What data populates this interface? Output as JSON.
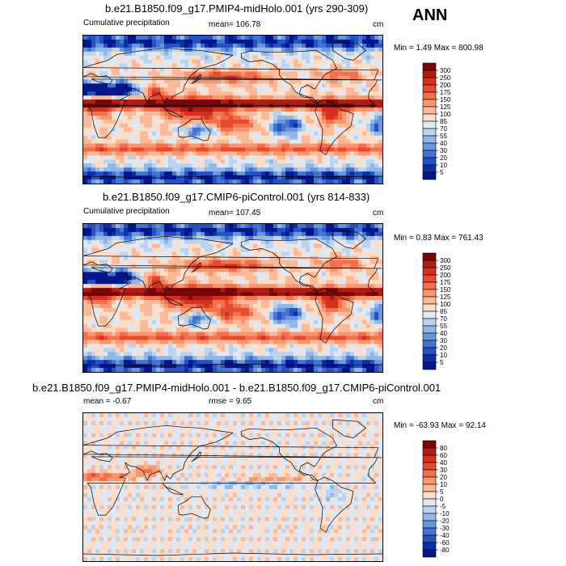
{
  "season": "ANN",
  "panels": [
    {
      "title": "b.e21.B1850.f09_g17.PMIP4-midHolo.001 (yrs 290-309)",
      "left_label": "Cumulative precipitation",
      "center_label": "mean= 106.78",
      "units": "cm",
      "minmax": "Min =   1.49 Max = 800.98",
      "type": "absolute",
      "colorbar_levels": [
        "300",
        "250",
        "200",
        "175",
        "150",
        "125",
        "100",
        "85",
        "70",
        "55",
        "40",
        "30",
        "20",
        "10",
        "5"
      ]
    },
    {
      "title": "b.e21.B1850.f09_g17.CMIP6-piControl.001 (yrs 814-833)",
      "left_label": "Cumulative precipitation",
      "center_label": "mean= 107.45",
      "units": "cm",
      "minmax": "Min =   0.83 Max = 761.43",
      "type": "absolute",
      "colorbar_levels": [
        "300",
        "250",
        "200",
        "175",
        "150",
        "125",
        "100",
        "85",
        "70",
        "55",
        "40",
        "30",
        "20",
        "10",
        "5"
      ]
    },
    {
      "title": "b.e21.B1850.f09_g17.PMIP4-midHolo.001 - b.e21.B1850.f09_g17.CMIP6-piControl.001",
      "left_label": "mean =  -0.67",
      "center_label": "rmse =   9.65",
      "units": "cm",
      "minmax": "Min = -63.93 Max =  92.14",
      "type": "difference",
      "colorbar_levels": [
        "80",
        "60",
        "40",
        "30",
        "20",
        "10",
        "5",
        "0",
        "-5",
        "-10",
        "-20",
        "-30",
        "-40",
        "-60",
        "-80"
      ]
    }
  ],
  "colors": {
    "absolute": [
      "#7a0403",
      "#b11b12",
      "#d4301f",
      "#e64b2e",
      "#f2704d",
      "#f8966f",
      "#fbb99a",
      "#fddcc8",
      "#dfe9f6",
      "#bcd3ee",
      "#92b6e6",
      "#6a96dc",
      "#4574d0",
      "#2651c2",
      "#0c2fa8",
      "#04178a"
    ],
    "difference": [
      "#7a0403",
      "#b11b12",
      "#d4301f",
      "#e64b2e",
      "#f2704d",
      "#f8966f",
      "#fbb99a",
      "#fddcc8",
      "#dfe9f6",
      "#bcd3ee",
      "#92b6e6",
      "#6a96dc",
      "#4574d0",
      "#2651c2",
      "#0c2fa8",
      "#04178a"
    ]
  }
}
